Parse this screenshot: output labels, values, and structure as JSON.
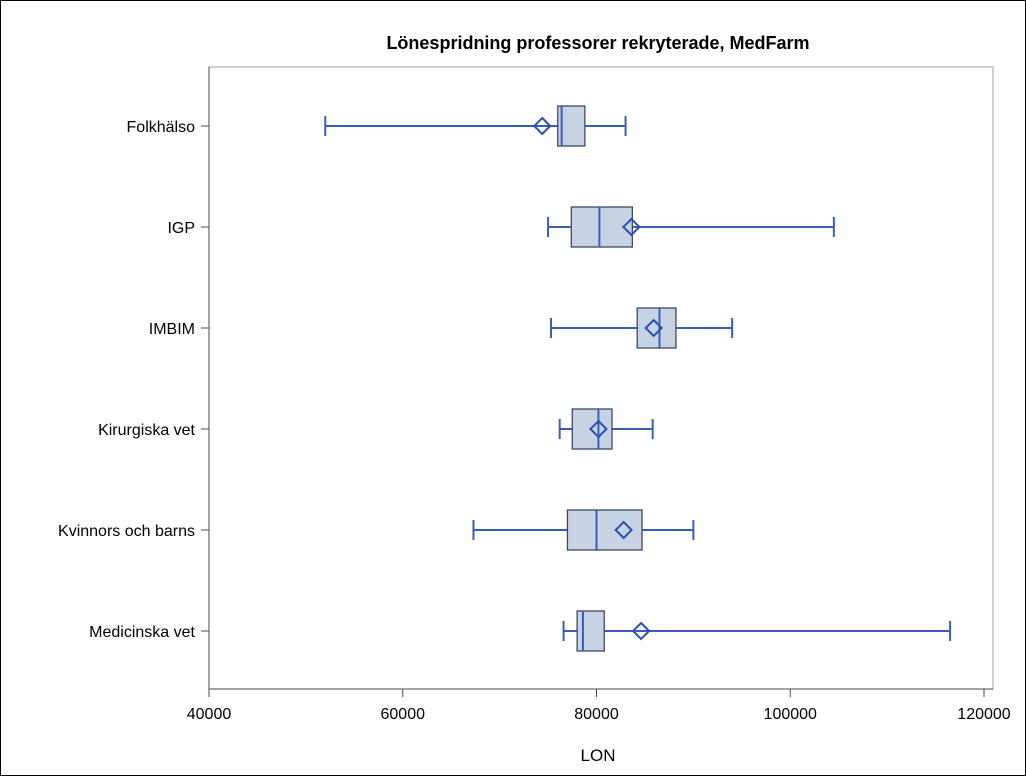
{
  "chart_data": {
    "type": "box",
    "title": "Lönespridning professorer rekryterade, MedFarm",
    "xlabel": "LON",
    "ylabel": "",
    "xlim": [
      40000,
      120000
    ],
    "xticks": [
      "40000",
      "60000",
      "80000",
      "100000",
      "120000"
    ],
    "categories": [
      "Folkhälso",
      "IGP",
      "IMBIM",
      "Kirurgiska vet",
      "Kvinnors och barns",
      "Medicinska vet"
    ],
    "boxes": [
      {
        "category": "Folkhälso",
        "min": 52000,
        "q1": 76000,
        "median": 76400,
        "q3": 78800,
        "max": 83000,
        "mean": 74400
      },
      {
        "category": "IGP",
        "min": 75000,
        "q1": 77400,
        "median": 80300,
        "q3": 83700,
        "max": 104500,
        "mean": 83600
      },
      {
        "category": "IMBIM",
        "min": 75300,
        "q1": 84200,
        "median": 86500,
        "q3": 88200,
        "max": 94000,
        "mean": 85900
      },
      {
        "category": "Kirurgiska vet",
        "min": 76200,
        "q1": 77500,
        "median": 80200,
        "q3": 81600,
        "max": 85800,
        "mean": 80200
      },
      {
        "category": "Kvinnors och barns",
        "min": 67300,
        "q1": 77000,
        "median": 80000,
        "q3": 84700,
        "max": 90000,
        "mean": 82800
      },
      {
        "category": "Medicinska vet",
        "min": 76600,
        "q1": 78000,
        "median": 78600,
        "q3": 80800,
        "max": 116500,
        "mean": 84600
      }
    ],
    "grid": false,
    "legend": "none",
    "colors": {
      "box_fill": "#c7d3e5",
      "box_stroke": "#3a4a63",
      "whisker": "#3a5dbb",
      "mean_marker": "#2d4fb0",
      "frame": "#a0a0a0",
      "axis": "#4a4a4a",
      "text": "#000000"
    }
  }
}
